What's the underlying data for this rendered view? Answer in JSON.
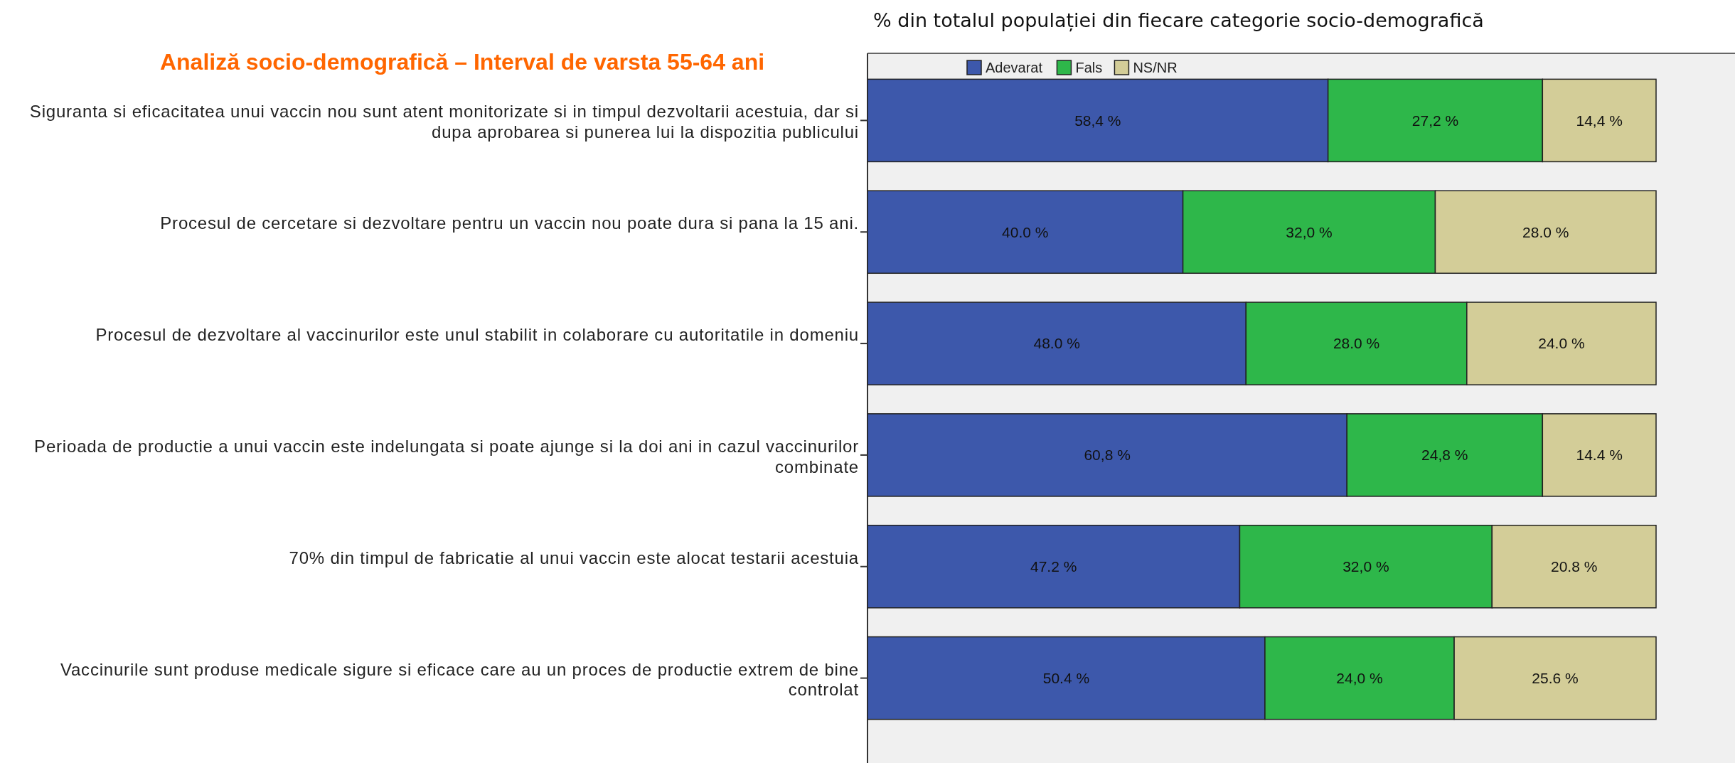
{
  "chart_data": {
    "type": "bar",
    "orientation": "horizontal",
    "stacked": true,
    "title": "Analiză socio-demografică – Interval de varsta 55-64 ani",
    "subtitle": "% din totalul populației din fiecare categorie socio-demografică",
    "categories": [
      "Siguranta si eficacitatea unui vaccin nou sunt atent monitorizate si in timpul dezvoltarii acestuia, dar si dupa aprobarea si punerea lui la dispozitia publicului",
      "Procesul de cercetare si dezvoltare pentru un vaccin nou poate dura si pana la 15 ani.",
      "Procesul de dezvoltare al vaccinurilor este unul stabilit in colaborare cu autoritatile in domeniu",
      "Perioada de productie a unui vaccin este indelungata si poate ajunge si la doi ani in cazul vaccinurilor combinate",
      "70% din timpul de fabricatie al unui vaccin este alocat testarii acestuia",
      "Vaccinurile sunt produse medicale sigure si eficace care au un proces de productie extrem de bine controlat"
    ],
    "series": [
      {
        "name": "Adevarat",
        "color": "#3d58ab",
        "values": [
          58.4,
          40.0,
          48.0,
          60.8,
          47.2,
          50.4
        ],
        "value_labels": [
          "58,4 %",
          "40.0 %",
          "48.0 %",
          "60,8 %",
          "47.2 %",
          "50.4 %"
        ]
      },
      {
        "name": "Fals",
        "color": "#2eb74a",
        "values": [
          27.2,
          32.0,
          28.0,
          24.8,
          32.0,
          24.0
        ],
        "value_labels": [
          "27,2 %",
          "32,0 %",
          "28.0 %",
          "24,8 %",
          "32,0 %",
          "24,0 %"
        ]
      },
      {
        "name": "NS/NR",
        "color": "#d3cd98",
        "values": [
          14.4,
          28.0,
          24.0,
          14.4,
          20.8,
          25.6
        ],
        "value_labels": [
          "14,4 %",
          "28.0 %",
          "24.0 %",
          "14.4 %",
          "20.8 %",
          "25.6 %"
        ]
      }
    ],
    "xlim": [
      0,
      100
    ],
    "legend": "top left",
    "tick_labels": "y"
  }
}
